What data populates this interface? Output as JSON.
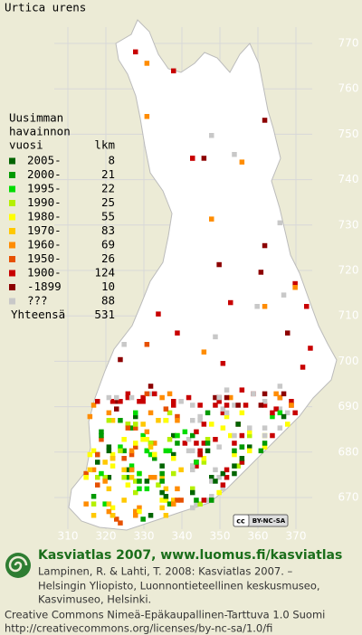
{
  "title": "Urtica urens",
  "legend": {
    "heading": [
      "Uusimman",
      "havainnon",
      "vuosi"
    ],
    "count_heading": "lkm",
    "items": [
      {
        "label": "2005-",
        "count": "8",
        "color": "#006400"
      },
      {
        "label": "2000-",
        "count": "21",
        "color": "#009a00"
      },
      {
        "label": "1995-",
        "count": "22",
        "color": "#00dc00"
      },
      {
        "label": "1990-",
        "count": "25",
        "color": "#b4f000"
      },
      {
        "label": "1980-",
        "count": "55",
        "color": "#ffff00"
      },
      {
        "label": "1970-",
        "count": "83",
        "color": "#ffc800"
      },
      {
        "label": "1960-",
        "count": "69",
        "color": "#ff8c00"
      },
      {
        "label": "1950-",
        "count": "26",
        "color": "#e65000"
      },
      {
        "label": "1900-",
        "count": "124",
        "color": "#c80000"
      },
      {
        "label": "-1899",
        "count": "10",
        "color": "#8c0000"
      },
      {
        "label": "???",
        "count": "88",
        "color": "#c8c8c8"
      }
    ],
    "total_label": "Yhteensä",
    "total_count": "531"
  },
  "grid_labels": {
    "north": [
      "770",
      "760",
      "750",
      "740",
      "730",
      "720",
      "710",
      "700",
      "690",
      "680",
      "670"
    ],
    "east": [
      "310",
      "320",
      "330",
      "340",
      "350",
      "360",
      "370"
    ]
  },
  "badge": {
    "cc": "cc",
    "license": "BY-NC-SA"
  },
  "footer": {
    "site": "Kasviatlas 2007, www.luomus.fi/kasviatlas",
    "citation": [
      "Lampinen, R. & Lahti, T. 2008: Kasviatlas 2007. –",
      "Helsingin Yliopisto, Luonnontieteellinen keskusmuseo,",
      "Kasvimuseo, Helsinki."
    ],
    "license": [
      "Creative Commons Nimeä-Epäkaupallinen-Tarttuva 1.0 Suomi",
      "http://creativecommons.org/licenses/by-nc-sa/1.0/fi"
    ]
  }
}
